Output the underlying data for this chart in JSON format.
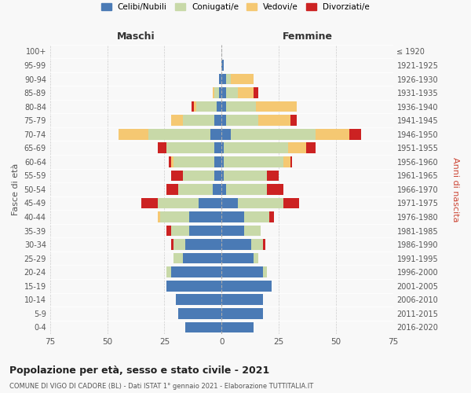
{
  "age_groups": [
    "0-4",
    "5-9",
    "10-14",
    "15-19",
    "20-24",
    "25-29",
    "30-34",
    "35-39",
    "40-44",
    "45-49",
    "50-54",
    "55-59",
    "60-64",
    "65-69",
    "70-74",
    "75-79",
    "80-84",
    "85-89",
    "90-94",
    "95-99",
    "100+"
  ],
  "birth_years": [
    "2016-2020",
    "2011-2015",
    "2006-2010",
    "2001-2005",
    "1996-2000",
    "1991-1995",
    "1986-1990",
    "1981-1985",
    "1976-1980",
    "1971-1975",
    "1966-1970",
    "1961-1965",
    "1956-1960",
    "1951-1955",
    "1946-1950",
    "1941-1945",
    "1936-1940",
    "1931-1935",
    "1926-1930",
    "1921-1925",
    "≤ 1920"
  ],
  "male": {
    "celibe": [
      16,
      19,
      20,
      24,
      22,
      17,
      16,
      14,
      14,
      10,
      4,
      3,
      3,
      3,
      5,
      3,
      2,
      1,
      1,
      0,
      0
    ],
    "coniugato": [
      0,
      0,
      0,
      0,
      2,
      4,
      5,
      8,
      13,
      18,
      15,
      14,
      18,
      21,
      27,
      14,
      9,
      2,
      0,
      0,
      0
    ],
    "vedovo": [
      0,
      0,
      0,
      0,
      0,
      0,
      0,
      0,
      1,
      0,
      0,
      0,
      1,
      0,
      13,
      5,
      1,
      1,
      0,
      0,
      0
    ],
    "divorziato": [
      0,
      0,
      0,
      0,
      0,
      0,
      1,
      2,
      0,
      7,
      5,
      5,
      1,
      4,
      0,
      0,
      1,
      0,
      0,
      0,
      0
    ]
  },
  "female": {
    "nubile": [
      14,
      18,
      18,
      22,
      18,
      14,
      13,
      10,
      10,
      7,
      2,
      1,
      1,
      1,
      4,
      2,
      2,
      2,
      2,
      1,
      0
    ],
    "coniugata": [
      0,
      0,
      0,
      0,
      2,
      2,
      5,
      7,
      11,
      20,
      18,
      19,
      26,
      28,
      37,
      14,
      13,
      5,
      2,
      0,
      0
    ],
    "vedova": [
      0,
      0,
      0,
      0,
      0,
      0,
      0,
      0,
      0,
      0,
      0,
      0,
      3,
      8,
      15,
      14,
      18,
      7,
      10,
      0,
      0
    ],
    "divorziata": [
      0,
      0,
      0,
      0,
      0,
      0,
      1,
      0,
      2,
      7,
      7,
      5,
      1,
      4,
      5,
      3,
      0,
      2,
      0,
      0,
      0
    ]
  },
  "colors": {
    "celibe_nubile": "#4a7ab5",
    "coniugato": "#c8d9a8",
    "vedovo": "#f5c872",
    "divorziato": "#cc2222"
  },
  "title": "Popolazione per età, sesso e stato civile - 2021",
  "subtitle": "COMUNE DI VIGO DI CADORE (BL) - Dati ISTAT 1° gennaio 2021 - Elaborazione TUTTITALIA.IT",
  "xlabel_left": "Maschi",
  "xlabel_right": "Femmine",
  "ylabel_left": "Fasce di età",
  "ylabel_right": "Anni di nascita",
  "xlim": 75,
  "legend_labels": [
    "Celibi/Nubili",
    "Coniugati/e",
    "Vedovi/e",
    "Divorziati/e"
  ],
  "background_color": "#f8f8f8",
  "grid_color": "#cccccc"
}
